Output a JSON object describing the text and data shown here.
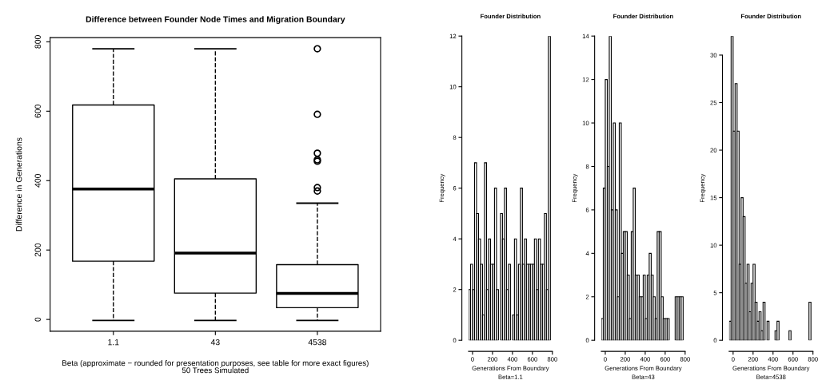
{
  "chart_data": [
    {
      "type": "box",
      "title": "Difference between Founder Node Times and Migration Boundary",
      "xlabel": "Beta (approximate − rounded for presentation purposes, see table for more exact figures)\n50 Trees Simulated",
      "ylabel": "Difference in Generations",
      "categories": [
        "1.1",
        "43",
        "4538"
      ],
      "boxes": [
        {
          "low": -3,
          "q1": 168,
          "median": 376,
          "q3": 618,
          "high": 780
        },
        {
          "low": -3,
          "q1": 76,
          "median": 191,
          "q3": 405,
          "high": 780
        },
        {
          "low": -3,
          "q1": 34,
          "median": 75,
          "q3": 158,
          "high": 335,
          "outliers": [
            780,
            591,
            479,
            460,
            456,
            380,
            370
          ]
        }
      ],
      "ylim": [
        -34,
        812
      ],
      "yticks": [
        0,
        200,
        400,
        600,
        800
      ],
      "grid": false
    },
    {
      "type": "histogram",
      "title": "Founder Distribution",
      "xlabel": "Generations From Boundary",
      "subtitle": "Beta=1.1",
      "ylabel": "Frequency",
      "color": "#ffffff",
      "bins": [
        -40,
        -20,
        0,
        20,
        40,
        60,
        80,
        100,
        120,
        140,
        160,
        180,
        200,
        220,
        240,
        260,
        280,
        300,
        320,
        340,
        360,
        380,
        400,
        420,
        440,
        460,
        480,
        500,
        520,
        540,
        560,
        580,
        600,
        620,
        640,
        660,
        680,
        700,
        720,
        740,
        760,
        780
      ],
      "values": [
        2,
        3,
        2,
        7,
        5,
        4,
        3,
        1,
        7,
        2,
        4,
        3,
        3,
        6,
        2,
        0,
        5,
        4,
        6,
        2,
        3,
        0,
        1,
        4,
        1,
        3,
        6,
        3,
        4,
        3,
        3,
        3,
        3,
        4,
        2,
        4,
        3,
        3,
        5,
        2,
        12
      ],
      "xlim": [
        -40,
        800
      ],
      "ylim": [
        0,
        12
      ],
      "xticks": [
        0,
        200,
        400,
        600,
        800
      ],
      "yticks": [
        0,
        2,
        4,
        6,
        8,
        10,
        12
      ],
      "grid": false
    },
    {
      "type": "histogram",
      "title": "Founder Distribution",
      "xlabel": "Generations From Boundary",
      "subtitle": "Beta=43",
      "ylabel": "Frequency",
      "color": "#ffffff",
      "bins": [
        -40,
        -20,
        0,
        20,
        40,
        60,
        80,
        100,
        120,
        140,
        160,
        180,
        200,
        220,
        240,
        260,
        280,
        300,
        320,
        340,
        360,
        380,
        400,
        420,
        440,
        460,
        480,
        500,
        520,
        540,
        560,
        580,
        600,
        620,
        640,
        660,
        680,
        700,
        720,
        740,
        760,
        780
      ],
      "values": [
        1,
        7,
        12,
        8,
        14,
        6,
        10,
        6,
        2,
        10,
        4,
        5,
        5,
        3,
        1,
        5,
        7,
        3,
        3,
        2,
        2,
        3,
        1,
        3,
        4,
        3,
        2,
        1,
        5,
        5,
        2,
        1,
        1,
        1,
        0,
        0,
        0,
        2,
        2,
        2,
        2
      ],
      "xlim": [
        -40,
        800
      ],
      "ylim": [
        0,
        14
      ],
      "xticks": [
        0,
        200,
        400,
        600,
        800
      ],
      "yticks": [
        0,
        2,
        4,
        6,
        8,
        10,
        12,
        14
      ],
      "grid": false
    },
    {
      "type": "histogram",
      "title": "Founder Distribution",
      "xlabel": "Generations From Boundary",
      "subtitle": "Beta=4538",
      "ylabel": "Frequency",
      "color": "#ffffff",
      "bins": [
        -40,
        -20,
        0,
        20,
        40,
        60,
        80,
        100,
        120,
        140,
        160,
        180,
        200,
        220,
        240,
        260,
        280,
        300,
        320,
        340,
        360,
        380,
        400,
        420,
        440,
        460,
        480,
        500,
        520,
        540,
        560,
        580,
        600,
        620,
        640,
        660,
        680,
        700,
        720,
        740,
        760,
        780
      ],
      "values": [
        2,
        32,
        22,
        27,
        22,
        8,
        15,
        13,
        6,
        8,
        3,
        6,
        8,
        4,
        2,
        3,
        1,
        4,
        0,
        2,
        0,
        0,
        0,
        1,
        2,
        0,
        0,
        0,
        0,
        0,
        1,
        0,
        0,
        0,
        0,
        0,
        0,
        0,
        0,
        0,
        4
      ],
      "xlim": [
        -40,
        800
      ],
      "ylim": [
        0,
        32
      ],
      "xticks": [
        0,
        200,
        400,
        600,
        800
      ],
      "yticks": [
        0,
        5,
        10,
        15,
        20,
        25,
        30
      ],
      "grid": false
    }
  ]
}
